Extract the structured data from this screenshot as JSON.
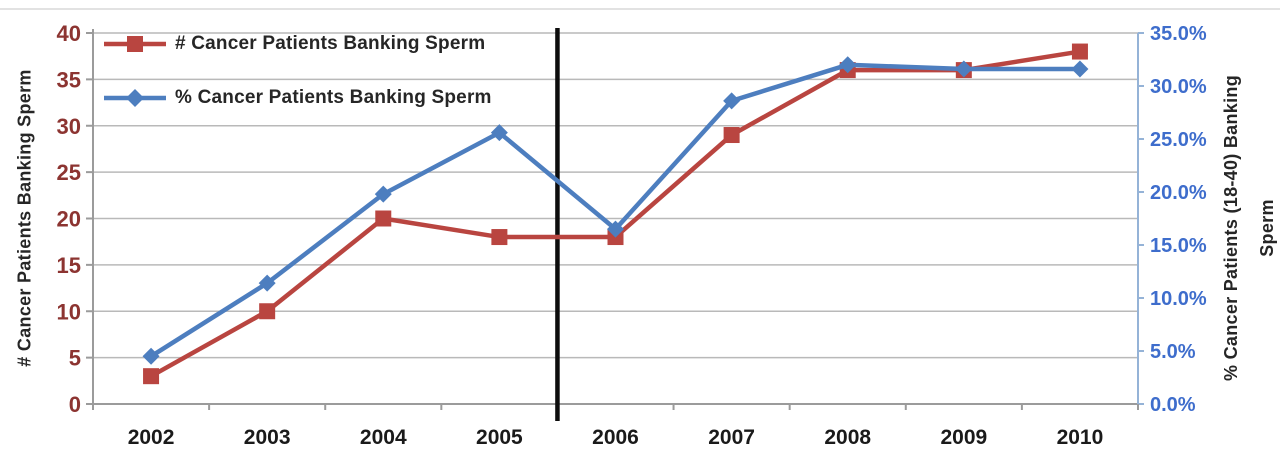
{
  "chart_data": {
    "type": "line",
    "title": "",
    "categories": [
      "2002",
      "2003",
      "2004",
      "2005",
      "2006",
      "2007",
      "2008",
      "2009",
      "2010"
    ],
    "series": [
      {
        "name": "# Cancer Patients Banking Sperm",
        "axis": "left",
        "marker": "square",
        "color": "#b94540",
        "values": [
          3,
          10,
          20,
          18,
          18,
          29,
          36,
          36,
          38
        ]
      },
      {
        "name": "% Cancer Patients Banking Sperm",
        "axis": "right",
        "marker": "diamond",
        "color": "#4d7ebf",
        "values": [
          4.5,
          11.4,
          19.8,
          25.6,
          16.5,
          28.6,
          32.0,
          31.6,
          31.6
        ]
      }
    ],
    "left_axis": {
      "label": "# Cancer Patients Banking Sperm",
      "min": 0,
      "max": 40,
      "step": 5,
      "tick_labels": [
        "0",
        "5",
        "10",
        "15",
        "20",
        "25",
        "30",
        "35",
        "40"
      ],
      "tick_color": "#8c3431"
    },
    "right_axis": {
      "label": "% Cancer Patients (18-40) Banking Sperm",
      "label_lines": [
        "% Cancer Patients (18-40) Banking",
        "Sperm"
      ],
      "min": 0,
      "max": 35,
      "step": 5,
      "tick_labels": [
        "0.0%",
        "5.0%",
        "10.0%",
        "15.0%",
        "20.0%",
        "25.0%",
        "30.0%",
        "35.0%"
      ],
      "tick_color": "#3e6dcc",
      "line_color": "#95b3d7"
    },
    "x_axis": {
      "tick_color": "#1a1a1a"
    },
    "divider": {
      "left_of_category": "2006",
      "color": "#0d0d0d"
    },
    "grid": true,
    "legend_position": "top-left-inside",
    "colors": {
      "gridline": "#b9b9b9",
      "axis_line": "#9b9b9b",
      "background": "#ffffff",
      "frame_top": "#d9d9d9"
    }
  }
}
